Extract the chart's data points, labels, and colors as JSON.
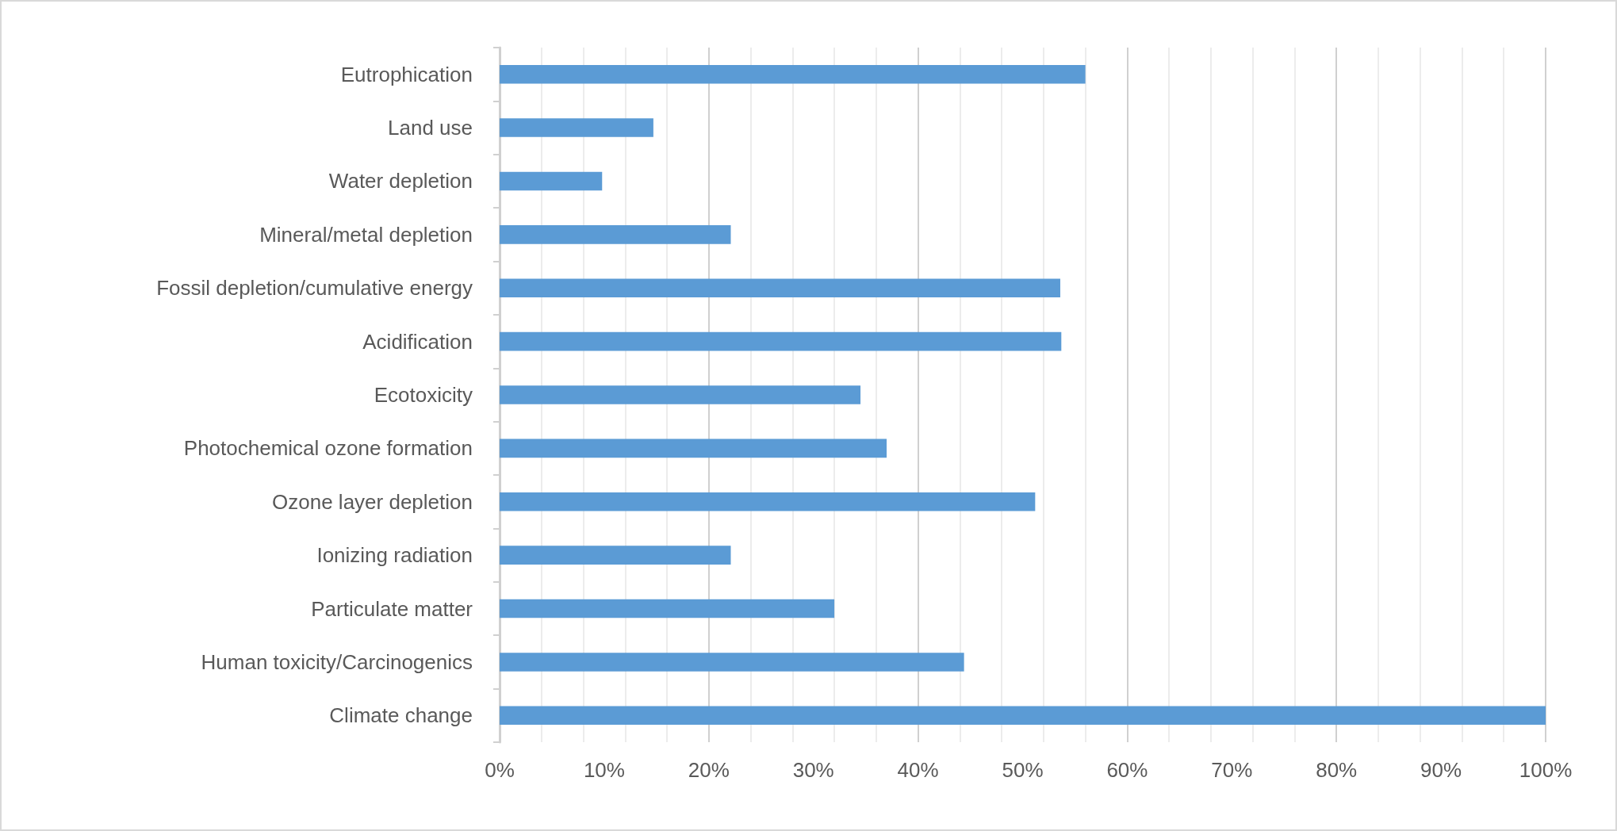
{
  "chart_data": {
    "type": "bar",
    "orientation": "horizontal",
    "categories": [
      "Eutrophication",
      "Land use",
      "Water depletion",
      "Mineral/metal depletion",
      "Fossil depletion/cumulative energy",
      "Acidification",
      "Ecotoxicity",
      "Photochemical ozone formation",
      "Ozone layer depletion",
      "Ionizing radiation",
      "Particulate matter",
      "Human toxicity/Carcinogenics",
      "Climate change"
    ],
    "values": [
      56,
      14.7,
      9.8,
      22.1,
      53.6,
      53.7,
      34.5,
      37,
      51.2,
      22.1,
      32,
      44.4,
      100
    ],
    "color": "#5b9bd5",
    "xlim": [
      0,
      100
    ],
    "xticks": [
      {
        "value": 0,
        "label": "0%"
      },
      {
        "value": 10,
        "label": "10%"
      },
      {
        "value": 20,
        "label": "20%"
      },
      {
        "value": 30,
        "label": "30%"
      },
      {
        "value": 40,
        "label": "40%"
      },
      {
        "value": 50,
        "label": "50%"
      },
      {
        "value": 60,
        "label": "60%"
      },
      {
        "value": 70,
        "label": "70%"
      },
      {
        "value": 80,
        "label": "80%"
      },
      {
        "value": 90,
        "label": "90%"
      },
      {
        "value": 100,
        "label": "100%"
      }
    ],
    "grid": "x"
  }
}
